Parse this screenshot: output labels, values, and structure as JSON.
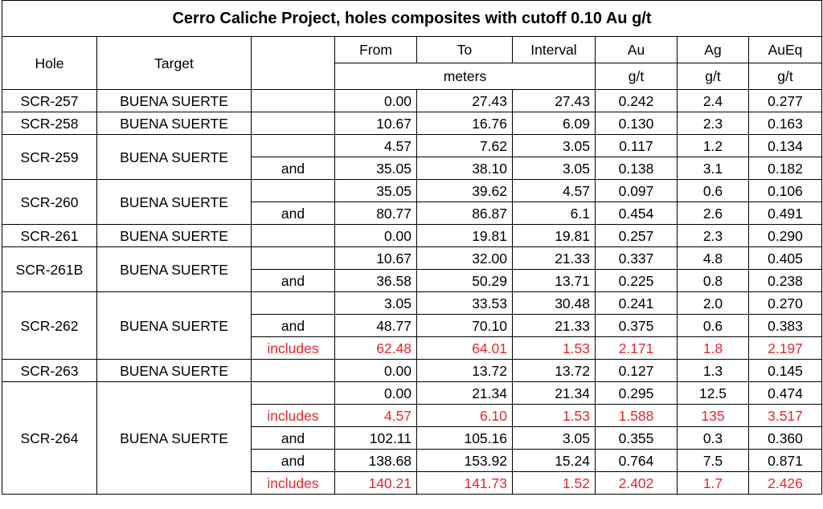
{
  "title": "Cerro Caliche Project, holes composites with cutoff 0.10 Au g/t",
  "headers": {
    "hole": "Hole",
    "target": "Target",
    "from": "From",
    "to": "To",
    "interval": "Interval",
    "au": "Au",
    "ag": "Ag",
    "aueq": "AuEq",
    "meters": "meters",
    "au_unit": "g/t",
    "ag_unit": "g/t",
    "aueq_unit": "g/t"
  },
  "highlight_color": "#e8262a",
  "rows": [
    {
      "hole": "SCR-257",
      "target": "BUENA SUERTE",
      "qual": "",
      "from": "0.00",
      "to": "27.43",
      "interval": "27.43",
      "au": "0.242",
      "ag": "2.4",
      "aueq": "0.277",
      "red": false
    },
    {
      "hole": "SCR-258",
      "target": "BUENA SUERTE",
      "qual": "",
      "from": "10.67",
      "to": "16.76",
      "interval": "6.09",
      "au": "0.130",
      "ag": "2.3",
      "aueq": "0.163",
      "red": false
    },
    {
      "hole": "SCR-259",
      "target": "BUENA SUERTE",
      "qual": "",
      "from": "4.57",
      "to": "7.62",
      "interval": "3.05",
      "au": "0.117",
      "ag": "1.2",
      "aueq": "0.134",
      "red": false
    },
    {
      "qual": "and",
      "from": "35.05",
      "to": "38.10",
      "interval": "3.05",
      "au": "0.138",
      "ag": "3.1",
      "aueq": "0.182",
      "red": false
    },
    {
      "hole": "SCR-260",
      "target": "BUENA SUERTE",
      "qual": "",
      "from": "35.05",
      "to": "39.62",
      "interval": "4.57",
      "au": "0.097",
      "ag": "0.6",
      "aueq": "0.106",
      "red": false
    },
    {
      "qual": "and",
      "from": "80.77",
      "to": "86.87",
      "interval": "6.1",
      "au": "0.454",
      "ag": "2.6",
      "aueq": "0.491",
      "red": false
    },
    {
      "hole": "SCR-261",
      "target": "BUENA SUERTE",
      "qual": "",
      "from": "0.00",
      "to": "19.81",
      "interval": "19.81",
      "au": "0.257",
      "ag": "2.3",
      "aueq": "0.290",
      "red": false
    },
    {
      "hole": "SCR-261B",
      "target": "BUENA SUERTE",
      "qual": "",
      "from": "10.67",
      "to": "32.00",
      "interval": "21.33",
      "au": "0.337",
      "ag": "4.8",
      "aueq": "0.405",
      "red": false
    },
    {
      "qual": "and",
      "from": "36.58",
      "to": "50.29",
      "interval": "13.71",
      "au": "0.225",
      "ag": "0.8",
      "aueq": "0.238",
      "red": false
    },
    {
      "hole": "SCR-262",
      "target": "BUENA SUERTE",
      "qual": "",
      "from": "3.05",
      "to": "33.53",
      "interval": "30.48",
      "au": "0.241",
      "ag": "2.0",
      "aueq": "0.270",
      "red": false
    },
    {
      "qual": "and",
      "from": "48.77",
      "to": "70.10",
      "interval": "21.33",
      "au": "0.375",
      "ag": "0.6",
      "aueq": "0.383",
      "red": false
    },
    {
      "qual": "includes",
      "from": "62.48",
      "to": "64.01",
      "interval": "1.53",
      "au": "2.171",
      "ag": "1.8",
      "aueq": "2.197",
      "red": true
    },
    {
      "hole": "SCR-263",
      "target": "BUENA SUERTE",
      "qual": "",
      "from": "0.00",
      "to": "13.72",
      "interval": "13.72",
      "au": "0.127",
      "ag": "1.3",
      "aueq": "0.145",
      "red": false
    },
    {
      "hole": "SCR-264",
      "target": "BUENA SUERTE",
      "qual": "",
      "from": "0.00",
      "to": "21.34",
      "interval": "21.34",
      "au": "0.295",
      "ag": "12.5",
      "aueq": "0.474",
      "red": false
    },
    {
      "qual": "includes",
      "from": "4.57",
      "to": "6.10",
      "interval": "1.53",
      "au": "1.588",
      "ag": "135",
      "aueq": "3.517",
      "red": true
    },
    {
      "qual": "and",
      "from": "102.11",
      "to": "105.16",
      "interval": "3.05",
      "au": "0.355",
      "ag": "0.3",
      "aueq": "0.360",
      "red": false
    },
    {
      "qual": "and",
      "from": "138.68",
      "to": "153.92",
      "interval": "15.24",
      "au": "0.764",
      "ag": "7.5",
      "aueq": "0.871",
      "red": false
    },
    {
      "qual": "includes",
      "from": "140.21",
      "to": "141.73",
      "interval": "1.52",
      "au": "2.402",
      "ag": "1.7",
      "aueq": "2.426",
      "red": true
    }
  ]
}
